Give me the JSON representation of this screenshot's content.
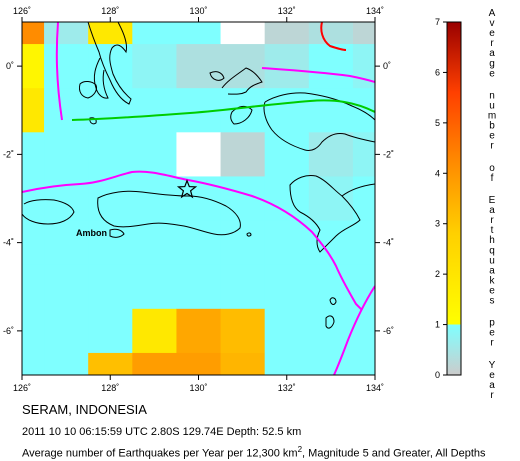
{
  "title": "SERAM, INDONESIA",
  "event_line": "2011 10 10 06:15:59 UTC 2.80S 129.74E Depth: 52.5 km",
  "caption": {
    "prefix": "Average number of Earthquakes per Year per 12,300 km",
    "sup": "2",
    "suffix": ", Magnitude 5 and Greater, All Depths"
  },
  "place_label": "Ambon",
  "colorbar": {
    "title": "Average number of Earthquakes per Year",
    "ticks": [
      "0",
      "1",
      "2",
      "3",
      "4",
      "5",
      "6",
      "7"
    ],
    "colors": {
      "low": "#cccccc",
      "cyan": "#7fffff",
      "yellow": "#ffff00",
      "orange": "#ff8c00",
      "dark": "#990000"
    }
  },
  "chart_data": {
    "type": "heatmap",
    "xlim": [
      126,
      134
    ],
    "ylim": [
      -7,
      1
    ],
    "x_ticks": [
      "126˚",
      "128˚",
      "130˚",
      "132˚",
      "134˚"
    ],
    "y_ticks": [
      "0˚",
      "-2˚",
      "-4˚",
      "-6˚"
    ],
    "cell_size_deg": 1,
    "cells": [
      [
        4.0,
        0.3,
        1.5,
        0.8,
        0.7,
        0.0,
        0.1,
        0.2,
        0.1
      ],
      [
        1.2,
        0.8,
        0.5,
        0.4,
        0.2,
        0.2,
        0.3,
        0.6,
        0.4
      ],
      [
        1.5,
        0.9,
        0.6,
        0.5,
        0.6,
        0.7,
        0.6,
        0.7,
        0.5
      ],
      [
        0.7,
        0.6,
        0.6,
        0.5,
        0.0,
        0.1,
        0.6,
        0.3,
        0.4
      ],
      [
        0.6,
        0.7,
        0.6,
        0.8,
        0.7,
        0.6,
        0.5,
        0.4,
        0.6
      ],
      [
        0.6,
        0.6,
        0.7,
        0.6,
        0.6,
        0.8,
        0.6,
        0.5,
        0.5
      ],
      [
        0.7,
        0.6,
        0.5,
        0.6,
        0.6,
        0.7,
        0.5,
        0.5,
        0.6
      ],
      [
        0.6,
        0.5,
        0.6,
        1.5,
        3.2,
        2.6,
        0.7,
        0.6,
        0.5
      ],
      [
        0.6,
        0.6,
        2.5,
        3.5,
        3.5,
        2.8,
        0.6,
        0.5,
        0.5
      ]
    ],
    "epicenter": {
      "lon": 129.74,
      "lat": -2.8,
      "depth_km": 52.5
    }
  }
}
